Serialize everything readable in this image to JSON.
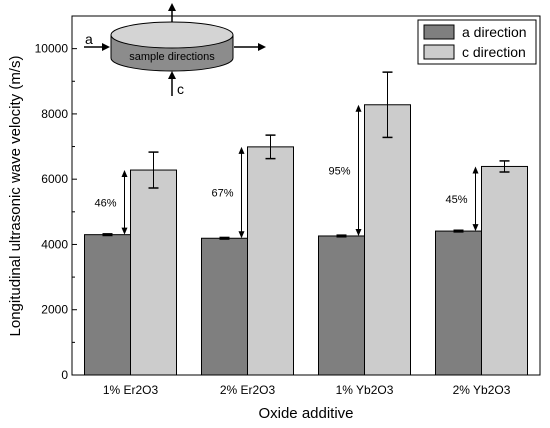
{
  "chart_data": {
    "type": "bar",
    "categories": [
      "1% Er2O3",
      "2% Er2O3",
      "1% Yb2O3",
      "2% Yb2O3"
    ],
    "series": [
      {
        "name": "a direction",
        "values": [
          4300,
          4190,
          4260,
          4410
        ],
        "errors": [
          25,
          25,
          25,
          25
        ],
        "color": "#7f7f7f"
      },
      {
        "name": "c direction",
        "values": [
          6280,
          6990,
          8280,
          6390
        ],
        "errors": [
          550,
          360,
          1000,
          170
        ],
        "color": "#cccccc"
      }
    ],
    "annotations": [
      "46%",
      "67%",
      "95%",
      "45%"
    ],
    "xlabel": "Oxide additive",
    "ylabel": "Longitudinal ultrasonic wave velocity (m/s)",
    "ylim": [
      0,
      11000
    ],
    "yticks": [
      0,
      2000,
      4000,
      6000,
      8000,
      10000
    ],
    "grid": false,
    "legend_position": "top-right"
  },
  "diagram": {
    "label": "sample directions",
    "a_label": "a",
    "c_label": "c"
  }
}
